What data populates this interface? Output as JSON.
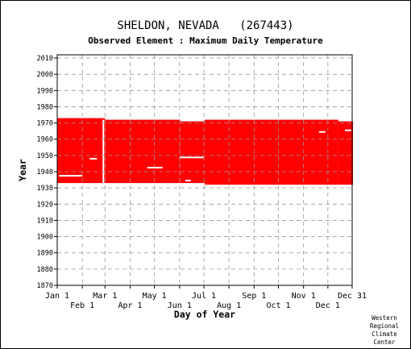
{
  "chart_data": {
    "type": "heatmap",
    "title": "SHELDON, NEVADA   (267443)",
    "subtitle": "Observed Element : Maximum Daily Temperature",
    "xlabel": "Day of Year",
    "ylabel": "Year",
    "x_range_day_of_year": [
      1,
      365
    ],
    "ylim": [
      1870,
      2012
    ],
    "y_ticks": [
      1870,
      1880,
      1890,
      1900,
      1910,
      1920,
      1930,
      1940,
      1950,
      1960,
      1970,
      1980,
      1990,
      2000,
      2010
    ],
    "x_ticks_row1": [
      {
        "label": "Jan 1",
        "day": 1
      },
      {
        "label": "Mar 1",
        "day": 60
      },
      {
        "label": "May 1",
        "day": 121
      },
      {
        "label": "Jul 1",
        "day": 182
      },
      {
        "label": "Sep 1",
        "day": 244
      },
      {
        "label": "Nov 1",
        "day": 305
      },
      {
        "label": "Dec 31",
        "day": 365
      }
    ],
    "x_ticks_row2": [
      {
        "label": "Feb 1",
        "day": 32
      },
      {
        "label": "Apr 1",
        "day": 91
      },
      {
        "label": "Jun 1",
        "day": 152
      },
      {
        "label": "Aug 1",
        "day": 213
      },
      {
        "label": "Oct 1",
        "day": 274
      },
      {
        "label": "Dec 1",
        "day": 335
      }
    ],
    "grid": true,
    "data_color": "#ff0000",
    "data_coverage": [
      {
        "day_start": 1,
        "day_end": 59,
        "year_start": 1933,
        "year_end": 1972
      },
      {
        "day_start": 60,
        "day_end": 152,
        "year_start": 1933,
        "year_end": 1971
      },
      {
        "day_start": 153,
        "day_end": 182,
        "year_start": 1933,
        "year_end": 1970
      },
      {
        "day_start": 183,
        "day_end": 347,
        "year_start": 1932,
        "year_end": 1971
      },
      {
        "day_start": 348,
        "day_end": 365,
        "year_start": 1932,
        "year_end": 1970
      }
    ],
    "missing_segments": [
      {
        "day_start": 3,
        "day_end": 31,
        "year": 1937.5
      },
      {
        "day_start": 112,
        "day_end": 130,
        "year": 1942.5
      },
      {
        "day_start": 152,
        "day_end": 181,
        "year": 1948.8
      },
      {
        "day_start": 41,
        "day_end": 49,
        "year": 1948.0
      },
      {
        "day_start": 159,
        "day_end": 165,
        "year": 1934.5
      },
      {
        "day_start": 57,
        "day_end": 58,
        "year_start": 1933,
        "year_end": 1972
      },
      {
        "day_start": 356,
        "day_end": 363,
        "year": 1965.5
      },
      {
        "day_start": 324,
        "day_end": 331,
        "year": 1964.5
      }
    ]
  },
  "credit": {
    "line1": "Western",
    "line2": "Regional",
    "line3": "Climate",
    "line4": "Center"
  }
}
